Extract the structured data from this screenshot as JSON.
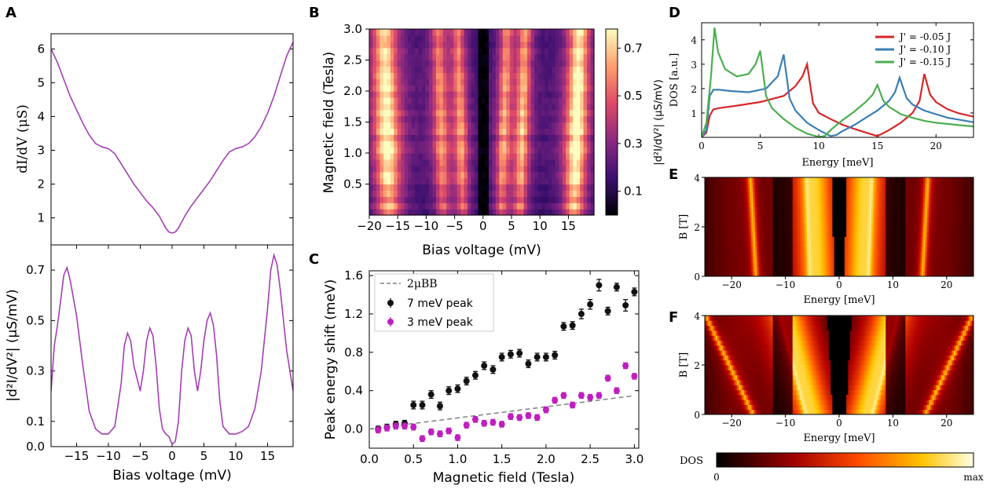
{
  "panel_labels": {
    "a": "A",
    "b": "B",
    "c": "C",
    "d": "D",
    "e": "E",
    "f": "F"
  },
  "chart_data": [
    {
      "id": "A_top",
      "type": "line",
      "ylabel": "dI/dV (μS)",
      "xlim": [
        -19,
        19
      ],
      "ylim": [
        0.2,
        6.45
      ],
      "yticks": [
        1,
        2,
        3,
        4,
        5,
        6
      ],
      "color": "#a43fb4",
      "x": [
        -19,
        -18,
        -17,
        -16,
        -15,
        -14,
        -13,
        -12,
        -11,
        -10,
        -9,
        -8,
        -7,
        -6,
        -5,
        -4,
        -3,
        -2,
        -1,
        -0.5,
        0,
        0.5,
        1,
        2,
        3,
        4,
        5,
        6,
        7,
        8,
        9,
        10,
        11,
        12,
        13,
        14,
        15,
        16,
        17,
        18,
        19
      ],
      "y": [
        6.0,
        5.6,
        5.1,
        4.6,
        4.2,
        3.8,
        3.45,
        3.2,
        3.1,
        3.05,
        2.9,
        2.6,
        2.3,
        2.0,
        1.75,
        1.5,
        1.3,
        1.05,
        0.7,
        0.58,
        0.55,
        0.58,
        0.7,
        1.05,
        1.35,
        1.6,
        1.85,
        2.1,
        2.4,
        2.7,
        2.95,
        3.05,
        3.1,
        3.2,
        3.4,
        3.7,
        4.1,
        4.6,
        5.2,
        5.8,
        6.2
      ]
    },
    {
      "id": "A_bottom",
      "type": "line",
      "xlabel": "Bias voltage (mV)",
      "ylabel": "|d²I/dV²| (μS/mV)",
      "xlim": [
        -19,
        19
      ],
      "ylim": [
        0,
        0.8
      ],
      "xticks": [
        -15,
        -10,
        -5,
        0,
        5,
        10,
        15
      ],
      "yticks": [
        0.0,
        0.1,
        0.3,
        0.5,
        0.7
      ],
      "color": "#a43fb4",
      "x": [
        -19,
        -18.5,
        -18,
        -17.5,
        -17,
        -16.5,
        -16,
        -15,
        -14,
        -13,
        -12,
        -11,
        -10,
        -9,
        -8,
        -7.5,
        -7,
        -6.5,
        -6,
        -5,
        -4.5,
        -4,
        -3.5,
        -3,
        -2.5,
        -2,
        -1.5,
        -1,
        -0.5,
        0,
        0.5,
        1,
        1.5,
        2,
        2.5,
        3,
        3.5,
        4,
        4.5,
        5,
        5.5,
        6,
        6.5,
        7,
        7.5,
        8,
        9,
        10,
        11,
        12,
        13,
        14,
        15,
        15.5,
        16,
        16.5,
        17,
        17.5,
        18,
        19
      ],
      "y": [
        0.22,
        0.4,
        0.48,
        0.58,
        0.68,
        0.71,
        0.66,
        0.52,
        0.32,
        0.14,
        0.07,
        0.05,
        0.05,
        0.08,
        0.25,
        0.4,
        0.45,
        0.42,
        0.32,
        0.22,
        0.3,
        0.42,
        0.47,
        0.44,
        0.32,
        0.15,
        0.07,
        0.05,
        0.04,
        0.01,
        0.02,
        0.1,
        0.3,
        0.42,
        0.47,
        0.44,
        0.3,
        0.22,
        0.3,
        0.42,
        0.5,
        0.53,
        0.48,
        0.36,
        0.18,
        0.08,
        0.05,
        0.05,
        0.06,
        0.08,
        0.15,
        0.3,
        0.55,
        0.7,
        0.76,
        0.72,
        0.62,
        0.5,
        0.38,
        0.22
      ]
    },
    {
      "id": "B",
      "type": "heatmap",
      "xlabel": "Bias voltage (mV)",
      "ylabel": "Magnetic field (Tesla)",
      "xlim": [
        -20,
        19.5
      ],
      "ylim": [
        0,
        3.0
      ],
      "xticks": [
        -20,
        -15,
        -10,
        -5,
        0,
        5,
        10,
        15
      ],
      "yticks": [
        0.5,
        1.0,
        1.5,
        2.0,
        2.5,
        3.0
      ],
      "colorbar_label": "|d²I/dV²| (μS/mV)",
      "colorbar_ticks": [
        0.1,
        0.3,
        0.5,
        0.7
      ],
      "colorbar_range": [
        0,
        0.78
      ],
      "colormap": "magma"
    },
    {
      "id": "C",
      "type": "scatter",
      "xlabel": "Magnetic field (Tesla)",
      "ylabel": "Peak energy shift (meV)",
      "xlim": [
        0,
        3.05
      ],
      "ylim": [
        -0.2,
        1.65
      ],
      "xticks": [
        0.0,
        0.5,
        1.0,
        1.5,
        2.0,
        2.5,
        3.0
      ],
      "yticks": [
        0.0,
        0.4,
        0.8,
        1.2,
        1.6
      ],
      "reference_line": {
        "name": "2μBB",
        "slope": 0.1158,
        "color": "#808080"
      },
      "series": [
        {
          "name": "7 meV peak",
          "color": "#111111",
          "x": [
            0.1,
            0.2,
            0.3,
            0.4,
            0.5,
            0.6,
            0.7,
            0.8,
            0.9,
            1.0,
            1.1,
            1.2,
            1.3,
            1.4,
            1.5,
            1.6,
            1.7,
            1.8,
            1.9,
            2.0,
            2.1,
            2.2,
            2.3,
            2.4,
            2.5,
            2.6,
            2.7,
            2.8,
            2.9,
            3.0
          ],
          "y": [
            0.0,
            0.02,
            0.05,
            0.06,
            0.25,
            0.25,
            0.36,
            0.24,
            0.4,
            0.42,
            0.5,
            0.56,
            0.66,
            0.62,
            0.75,
            0.78,
            0.79,
            0.68,
            0.75,
            0.75,
            0.77,
            1.07,
            1.08,
            1.2,
            1.3,
            1.5,
            1.23,
            1.48,
            1.29,
            1.43
          ],
          "err": [
            0.03,
            0.03,
            0.03,
            0.03,
            0.04,
            0.04,
            0.04,
            0.04,
            0.04,
            0.04,
            0.04,
            0.04,
            0.04,
            0.04,
            0.04,
            0.04,
            0.04,
            0.04,
            0.04,
            0.04,
            0.04,
            0.04,
            0.04,
            0.05,
            0.05,
            0.06,
            0.04,
            0.04,
            0.06,
            0.04
          ]
        },
        {
          "name": "3 meV peak",
          "color": "#bf1fbf",
          "x": [
            0.1,
            0.2,
            0.3,
            0.4,
            0.5,
            0.6,
            0.7,
            0.8,
            0.9,
            1.0,
            1.1,
            1.2,
            1.3,
            1.4,
            1.5,
            1.6,
            1.7,
            1.8,
            1.9,
            2.0,
            2.1,
            2.2,
            2.3,
            2.4,
            2.5,
            2.6,
            2.7,
            2.8,
            2.9,
            3.0
          ],
          "y": [
            -0.01,
            0.01,
            0.03,
            0.03,
            0.02,
            -0.1,
            -0.03,
            -0.05,
            -0.02,
            -0.09,
            0.04,
            0.1,
            0.06,
            0.07,
            0.05,
            0.13,
            0.12,
            0.14,
            0.12,
            0.2,
            0.3,
            0.35,
            0.25,
            0.35,
            0.33,
            0.35,
            0.53,
            0.4,
            0.66,
            0.55
          ],
          "err": [
            0.03,
            0.03,
            0.03,
            0.03,
            0.03,
            0.03,
            0.03,
            0.03,
            0.03,
            0.03,
            0.03,
            0.03,
            0.03,
            0.03,
            0.03,
            0.03,
            0.03,
            0.03,
            0.03,
            0.03,
            0.03,
            0.03,
            0.03,
            0.03,
            0.03,
            0.03,
            0.03,
            0.03,
            0.03,
            0.03
          ]
        }
      ]
    },
    {
      "id": "D",
      "type": "line",
      "xlabel": "Energy [meV]",
      "ylabel": "DOS [a.u.]",
      "xlim": [
        0,
        23.2
      ],
      "ylim": [
        0,
        4.7
      ],
      "xticks": [
        0,
        5,
        10,
        15,
        20
      ],
      "yticks": [
        1,
        2,
        3,
        4
      ],
      "legend_position": "top-right",
      "series": [
        {
          "name": "J' = -0.05 J",
          "color": "#d62728",
          "x": [
            0,
            0.4,
            0.7,
            1.0,
            1.5,
            3,
            5,
            7,
            8,
            8.6,
            9.0,
            9.5,
            10,
            11,
            12,
            13,
            14,
            15,
            16,
            17,
            18,
            18.6,
            19.0,
            19.5,
            20,
            21,
            22,
            23.2
          ],
          "y": [
            0,
            0.2,
            0.9,
            1.15,
            1.2,
            1.3,
            1.45,
            1.7,
            2.1,
            2.5,
            3.0,
            1.4,
            1.0,
            0.75,
            0.52,
            0.35,
            0.2,
            0.05,
            0.3,
            0.6,
            1.0,
            1.5,
            2.6,
            1.75,
            1.45,
            1.15,
            0.98,
            0.85
          ]
        },
        {
          "name": "J' = -0.10 J",
          "color": "#3a7fb5",
          "x": [
            0,
            0.4,
            0.7,
            1.0,
            1.5,
            2.5,
            4,
            5.5,
            6.5,
            7.0,
            7.5,
            8,
            9,
            10,
            11,
            11.5,
            12,
            13,
            14,
            15,
            16,
            16.5,
            16.9,
            17.5,
            18,
            19,
            20,
            21,
            22,
            23.2
          ],
          "y": [
            0,
            0.3,
            1.7,
            1.95,
            1.95,
            1.9,
            1.85,
            2.0,
            2.5,
            3.4,
            1.6,
            1.1,
            0.6,
            0.3,
            0.05,
            0.1,
            0.25,
            0.5,
            0.8,
            1.1,
            1.5,
            1.85,
            2.45,
            1.6,
            1.35,
            1.1,
            0.95,
            0.8,
            0.72,
            0.62
          ]
        },
        {
          "name": "J' = -0.15 J",
          "color": "#4caf50",
          "x": [
            0,
            0.4,
            0.8,
            1.1,
            1.4,
            2,
            3,
            4,
            4.6,
            5.0,
            5.5,
            6,
            7,
            8,
            9,
            10,
            10.5,
            11,
            12,
            13,
            14,
            14.6,
            15.0,
            15.5,
            16,
            17,
            18,
            19,
            20,
            21,
            22,
            23.2
          ],
          "y": [
            0,
            0.6,
            2.5,
            4.5,
            3.5,
            2.8,
            2.5,
            2.6,
            3.0,
            3.55,
            1.7,
            1.2,
            0.75,
            0.4,
            0.15,
            0.02,
            0.05,
            0.3,
            0.7,
            1.05,
            1.45,
            1.75,
            2.15,
            1.5,
            1.25,
            0.95,
            0.8,
            0.68,
            0.6,
            0.55,
            0.5,
            0.45
          ]
        }
      ]
    },
    {
      "id": "E",
      "type": "heatmap",
      "xlabel": "Energy [meV]",
      "ylabel": "B [T]",
      "xlim": [
        -25,
        25
      ],
      "ylim": [
        0,
        4
      ],
      "xticks": [
        -20,
        -10,
        0,
        10,
        20
      ],
      "yticks": [
        0,
        2,
        4
      ],
      "colormap": "hot"
    },
    {
      "id": "F",
      "type": "heatmap",
      "xlabel": "Energy [meV]",
      "ylabel": "B [T]",
      "xlim": [
        -25,
        25
      ],
      "ylim": [
        0,
        4
      ],
      "xticks": [
        -20,
        -10,
        0,
        10,
        20
      ],
      "yticks": [
        0,
        2,
        4
      ],
      "colormap": "hot"
    }
  ],
  "dos_colorbar": {
    "label": "DOS",
    "min_label": "0",
    "max_label": "max"
  },
  "colors": {
    "magma": [
      "#000004",
      "#3b0f70",
      "#8c2981",
      "#de4968",
      "#fe9f6d",
      "#fcfdbf"
    ],
    "hot": [
      "#000000",
      "#b30000",
      "#ff5500",
      "#ffc400",
      "#ffffd8"
    ]
  }
}
